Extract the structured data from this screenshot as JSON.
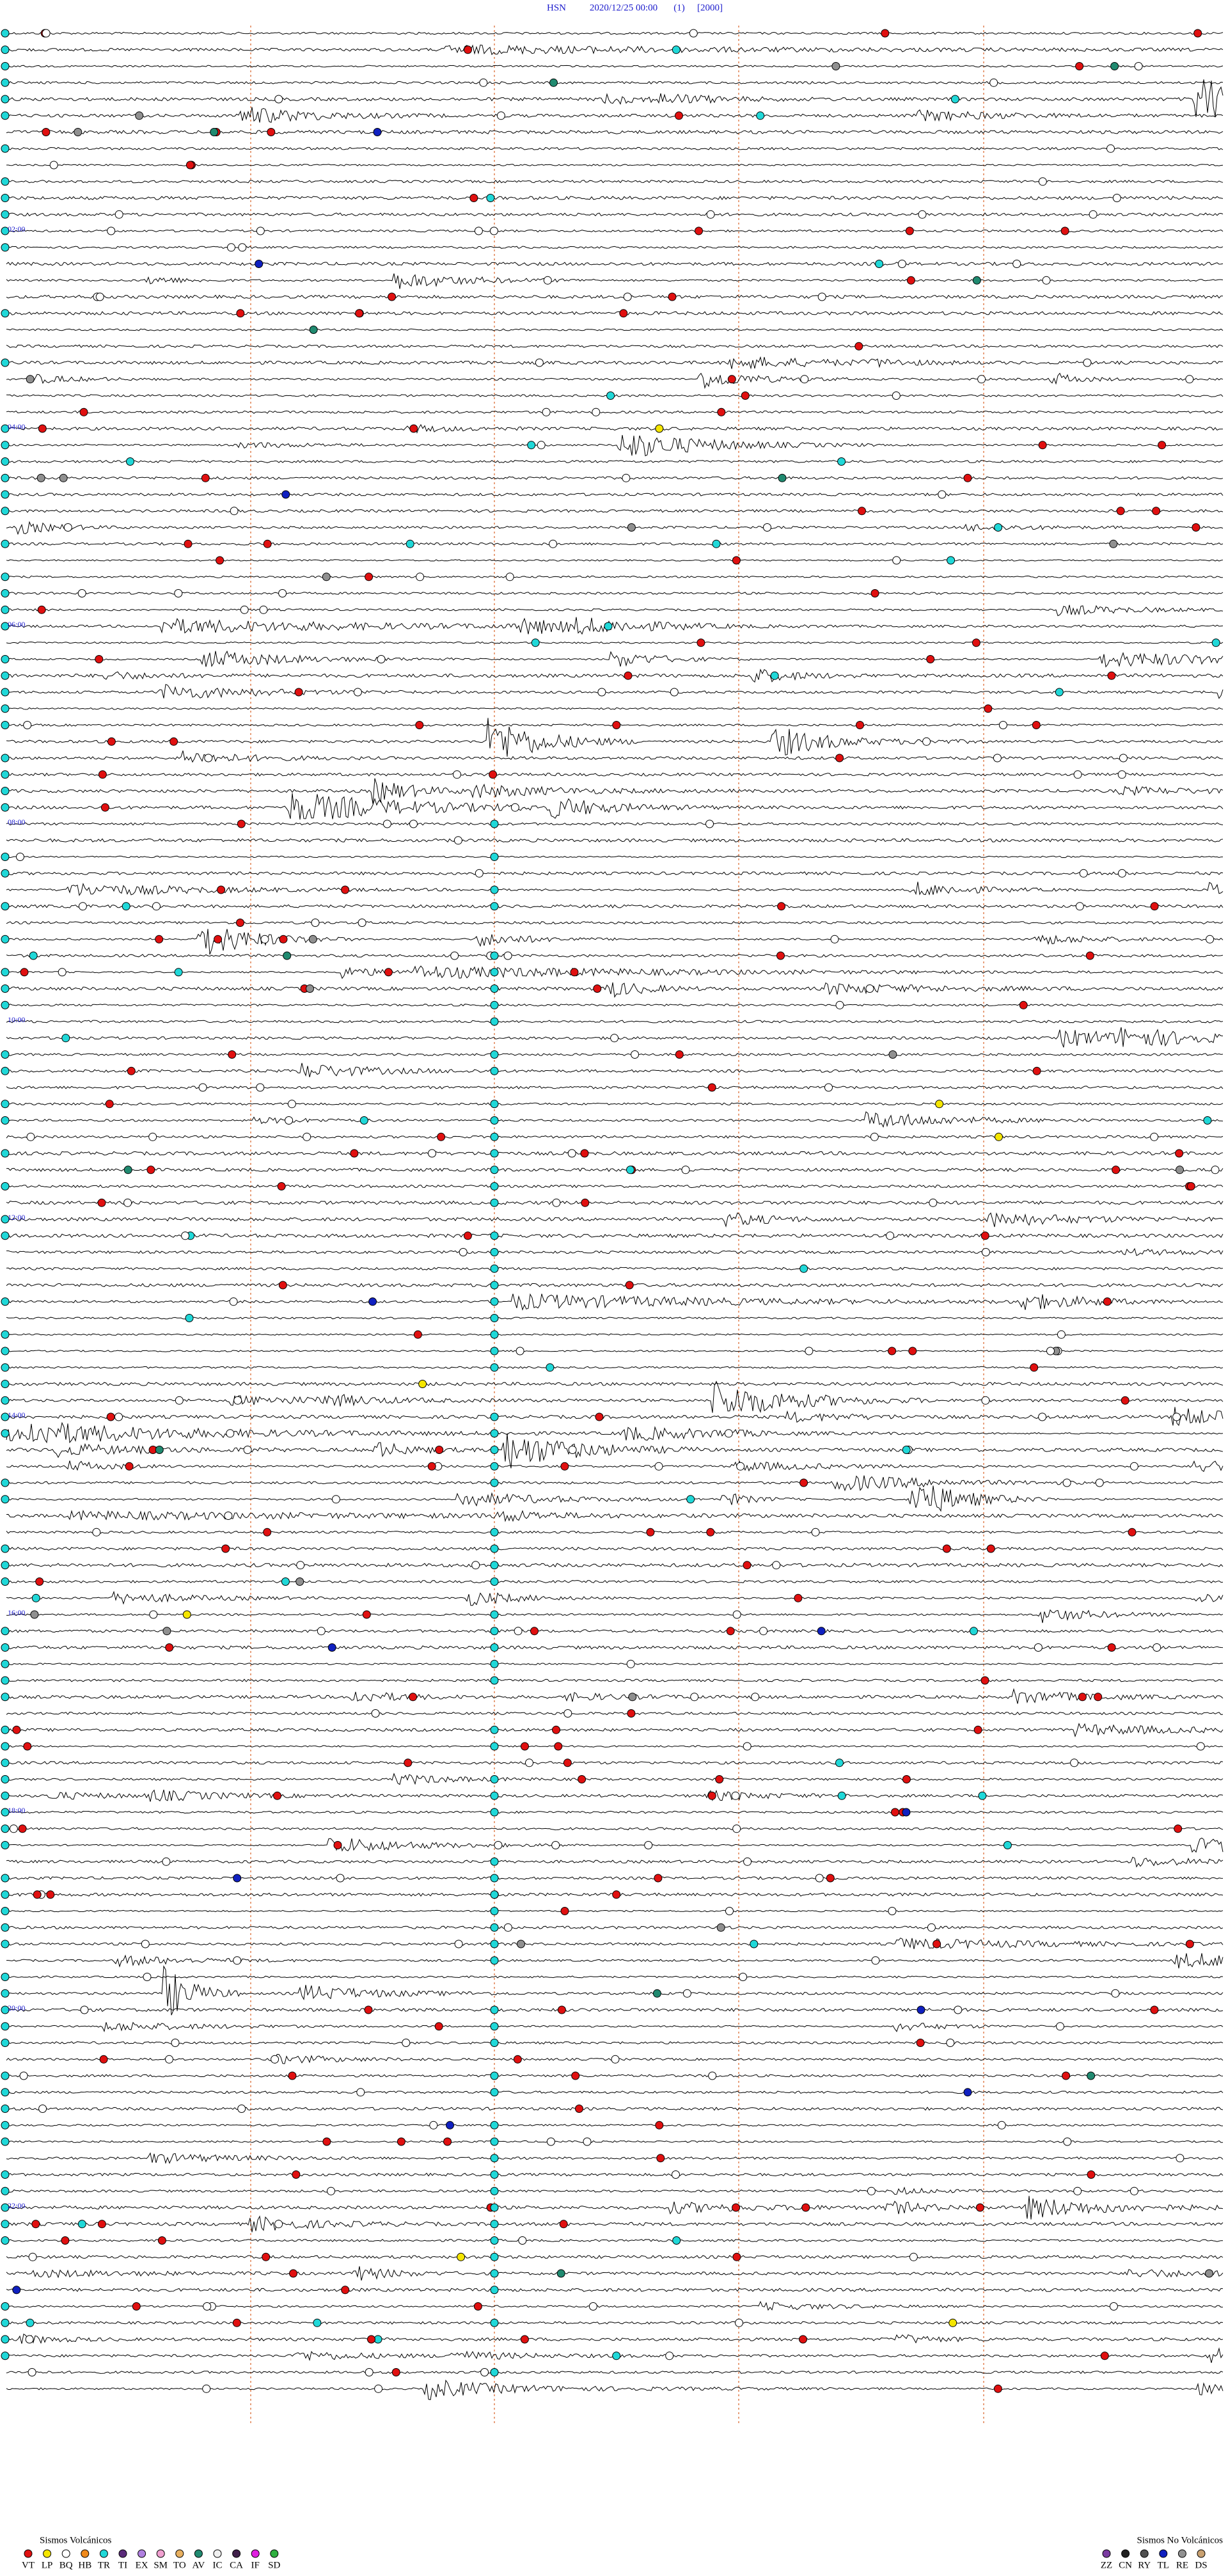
{
  "header": {
    "station": "HSN",
    "datetime": "2020/12/25 00:00",
    "channel": "(1)",
    "scale": "[2000]"
  },
  "time_labels": [
    "02:00",
    "04:00",
    "06:00",
    "08:00",
    "10:00",
    "12:00",
    "14:00",
    "16:00",
    "18:00",
    "20:00",
    "22:00"
  ],
  "legend": {
    "volcanic": {
      "title": "Sismos Volcánicos",
      "items": [
        {
          "code": "VT",
          "color": "#e01010"
        },
        {
          "code": "LP",
          "color": "#f5e600"
        },
        {
          "code": "BQ",
          "color": "#ffffff"
        },
        {
          "code": "HB",
          "color": "#f08a1c"
        },
        {
          "code": "TR",
          "color": "#20d8d8"
        },
        {
          "code": "TI",
          "color": "#5a2a7a"
        },
        {
          "code": "EX",
          "color": "#b080e0"
        },
        {
          "code": "SM",
          "color": "#f0a0d0"
        },
        {
          "code": "TO",
          "color": "#e8b060"
        },
        {
          "code": "AV",
          "color": "#208a70"
        },
        {
          "code": "IC",
          "color": "#f0f0f0"
        },
        {
          "code": "CA",
          "color": "#40204a"
        },
        {
          "code": "IF",
          "color": "#e020e0"
        },
        {
          "code": "SD",
          "color": "#30b040"
        }
      ]
    },
    "non_volcanic": {
      "title": "Sismos No Volcánicos",
      "items": [
        {
          "code": "ZZ",
          "color": "#7a3aa0"
        },
        {
          "code": "CN",
          "color": "#202020"
        },
        {
          "code": "RY",
          "color": "#505050"
        },
        {
          "code": "TL",
          "color": "#1020c0"
        },
        {
          "code": "RE",
          "color": "#909090"
        },
        {
          "code": "DS",
          "color": "#c8a070"
        }
      ]
    }
  }
}
